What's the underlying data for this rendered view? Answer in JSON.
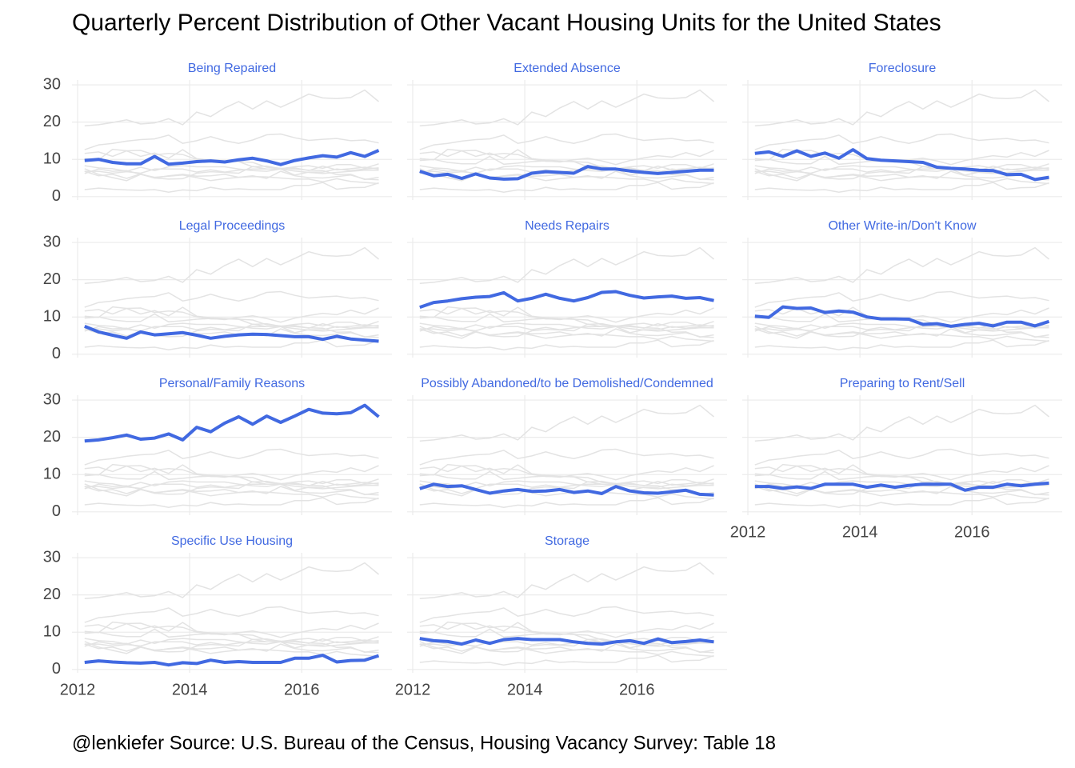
{
  "chart_data": {
    "type": "line",
    "title": "Quarterly Percent Distribution of Other Vacant Housing Units for the United States",
    "caption": "@lenkiefer Source: U.S. Bureau of the Census, Housing Vacancy Survey: Table 18",
    "x": [
      2012.125,
      2012.375,
      2012.625,
      2012.875,
      2013.125,
      2013.375,
      2013.625,
      2013.875,
      2014.125,
      2014.375,
      2014.625,
      2014.875,
      2015.125,
      2015.375,
      2015.625,
      2015.875,
      2016.125,
      2016.375,
      2016.625,
      2016.875,
      2017.125,
      2017.375
    ],
    "xlim": [
      2011.9,
      2017.61
    ],
    "xticks": [
      2012,
      2014,
      2016
    ],
    "ylim": [
      -0.9,
      31.3
    ],
    "yticks": [
      0,
      10,
      20,
      30
    ],
    "grid": true,
    "context_color": "#e3e3e3",
    "series": [
      {
        "name": "Being Repaired",
        "color": "#4169e1",
        "values": [
          9.7,
          10,
          9.2,
          8.8,
          8.8,
          10.8,
          8.7,
          9,
          9.4,
          9.6,
          9.3,
          9.9,
          10.3,
          9.6,
          8.6,
          9.7,
          10.4,
          11,
          10.6,
          11.8,
          10.8,
          12.4
        ]
      },
      {
        "name": "Extended Absence",
        "color": "#4169e1",
        "values": [
          6.8,
          5.6,
          6,
          4.9,
          6.1,
          5,
          4.7,
          4.8,
          6.3,
          6.7,
          6.5,
          6.3,
          8.1,
          7.4,
          7.4,
          6.9,
          6.5,
          6.2,
          6.5,
          6.8,
          7.1,
          7.1
        ]
      },
      {
        "name": "Foreclosure",
        "color": "#4169e1",
        "values": [
          11.6,
          12,
          10.8,
          12.3,
          10.8,
          11.7,
          10.3,
          12.6,
          10.2,
          9.8,
          9.6,
          9.4,
          9.2,
          7.9,
          7.6,
          7.4,
          7.1,
          7,
          5.9,
          6,
          4.6,
          5.2
        ]
      },
      {
        "name": "Legal Proceedings",
        "color": "#4169e1",
        "values": [
          7.5,
          6,
          5.1,
          4.3,
          6,
          5.2,
          5.5,
          5.8,
          5.1,
          4.3,
          4.8,
          5.2,
          5.4,
          5.3,
          5,
          4.7,
          4.7,
          4,
          4.8,
          4.1,
          3.8,
          3.5
        ]
      },
      {
        "name": "Needs Repairs",
        "color": "#4169e1",
        "values": [
          12.6,
          13.9,
          14.3,
          14.9,
          15.3,
          15.5,
          16.5,
          14.3,
          15,
          16.1,
          15,
          14.3,
          15.2,
          16.6,
          16.8,
          15.8,
          15.1,
          15.4,
          15.6,
          15,
          15.2,
          14.4
        ]
      },
      {
        "name": "Other Write-in/Don't Know",
        "color": "#4169e1",
        "values": [
          10.2,
          9.9,
          12.7,
          12.3,
          12.4,
          11.2,
          11.6,
          11.3,
          10,
          9.5,
          9.5,
          9.4,
          8,
          8.2,
          7.5,
          8,
          8.3,
          7.6,
          8.6,
          8.6,
          7.6,
          8.8
        ]
      },
      {
        "name": "Personal/Family Reasons",
        "color": "#4169e1",
        "values": [
          19,
          19.3,
          19.9,
          20.6,
          19.5,
          19.8,
          20.9,
          19.3,
          22.7,
          21.5,
          23.8,
          25.5,
          23.5,
          25.7,
          24,
          25.7,
          27.5,
          26.5,
          26.3,
          26.6,
          28.6,
          25.5
        ]
      },
      {
        "name": "Possibly Abandoned/to be Demolished/Condemned",
        "color": "#4169e1",
        "values": [
          6.2,
          7.4,
          6.8,
          7,
          6,
          5,
          5.6,
          6,
          5.5,
          5.6,
          6,
          5.2,
          5.6,
          4.9,
          6.8,
          5.6,
          5.1,
          5,
          5.4,
          5.8,
          4.7,
          4.5
        ]
      },
      {
        "name": "Preparing to Rent/Sell",
        "color": "#4169e1",
        "values": [
          6.8,
          6.8,
          6.3,
          6.7,
          6.3,
          7.4,
          7.4,
          7.4,
          6.6,
          7.2,
          6.6,
          7.1,
          7.4,
          7.4,
          7.4,
          5.8,
          6.6,
          6.6,
          7.4,
          7,
          7.4,
          7.7
        ]
      },
      {
        "name": "Specific Use Housing",
        "color": "#4169e1",
        "values": [
          1.9,
          2.3,
          2,
          1.8,
          1.7,
          1.9,
          1.2,
          1.8,
          1.6,
          2.5,
          1.9,
          2.1,
          1.9,
          1.9,
          1.9,
          3,
          3,
          3.8,
          2,
          2.4,
          2.5,
          3.7
        ]
      },
      {
        "name": "Storage",
        "color": "#4169e1",
        "values": [
          8.3,
          7.7,
          7.5,
          6.8,
          7.9,
          7,
          8,
          8.3,
          8,
          8,
          8,
          7.4,
          7,
          6.8,
          7.4,
          7.7,
          7,
          8.2,
          7.2,
          7.5,
          7.9,
          7.4
        ]
      }
    ]
  }
}
